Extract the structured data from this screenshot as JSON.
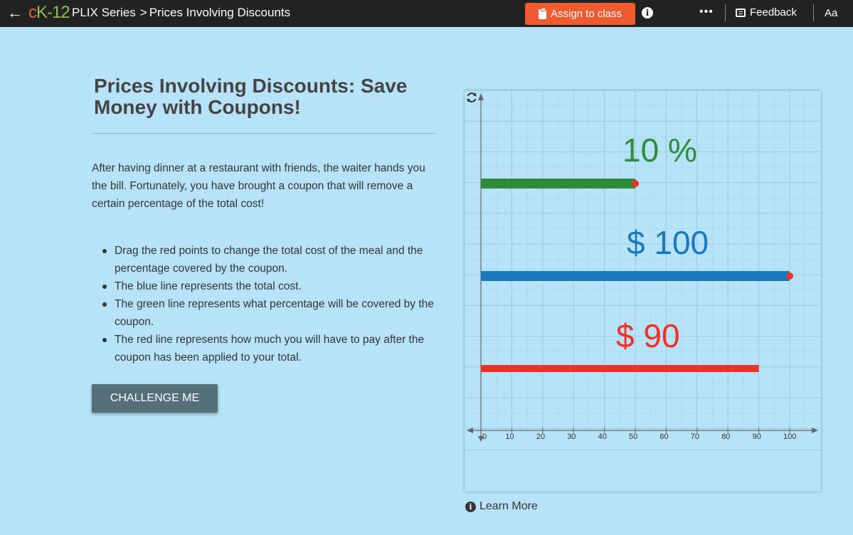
{
  "header": {
    "back_icon": "arrow-left-icon",
    "logo": {
      "c": "c",
      "k": "K",
      "n": "-12"
    },
    "breadcrumb": {
      "series": "PLIX Series",
      "separator": ">",
      "page": "Prices Involving Discounts"
    },
    "assign_label": "Assign to class",
    "feedback_label": "Feedback",
    "text_size_label": "Aa",
    "more_label": "•••",
    "accent": "#ee5b30"
  },
  "main": {
    "title": "Prices Involving Discounts: Save Money with Coupons!",
    "intro": "After having dinner at a restaurant with friends, the waiter hands you the bill. Fortunately, you have brought a coupon that will remove a certain percentage of the total cost!",
    "bullets": [
      "Drag the red points to change the total cost of the meal and the percentage covered by the coupon.",
      "The blue line represents the total cost.",
      "The green line represents what percentage will be covered by the coupon.",
      "The red line represents how much you will have to pay after the coupon has been applied to your total."
    ],
    "challenge_label": "CHALLENGE ME"
  },
  "interactive": {
    "percent_label": "10 %",
    "total_label": "$ 100",
    "pay_label": "$ 90",
    "percent_value": 10,
    "total_value": 100,
    "pay_value": 90,
    "x_ticks": [
      "0",
      "10",
      "20",
      "30",
      "40",
      "50",
      "60",
      "70",
      "80",
      "90",
      "100"
    ],
    "xlim": [
      0,
      100
    ],
    "colors": {
      "green": "#2e8b3a",
      "blue": "#1a78be",
      "red": "#ee3124",
      "handle": "#ee3124"
    },
    "reset_icon": "refresh-icon"
  },
  "footer": {
    "learn_more_label": "Learn More"
  }
}
